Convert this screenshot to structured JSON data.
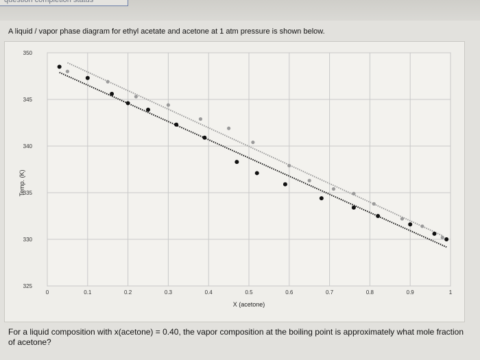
{
  "header": {
    "status_label": "question completion status"
  },
  "intro": "A liquid / vapor phase diagram for ethyl acetate and acetone at 1 atm pressure is shown below.",
  "question": "For a liquid composition with x(acetone) = 0.40, the vapor composition at the boiling point is approximately what mole fraction of acetone?",
  "colors": {
    "vapor_curve": "#9a9a9a",
    "liquid_curve": "#111111",
    "grid": "#c8c8c8"
  },
  "chart_data": {
    "type": "scatter",
    "title": "",
    "xlabel": "X (acetone)",
    "ylabel": "Temp. (K)",
    "xlim": [
      0,
      1
    ],
    "ylim": [
      325,
      350
    ],
    "x_ticks": [
      "0",
      "0.1",
      "0.2",
      "0.3",
      "0.4",
      "0.5",
      "0.6",
      "0.7",
      "0.8",
      "0.9",
      "1"
    ],
    "y_ticks": [
      "325",
      "330",
      "335",
      "340",
      "345",
      "350"
    ],
    "grid": true,
    "legend": "none",
    "series": [
      {
        "x": [
          0.05,
          0.15,
          0.22,
          0.3,
          0.38,
          0.45,
          0.51,
          0.6,
          0.65,
          0.71,
          0.76,
          0.81,
          0.88,
          0.93,
          0.98
        ],
        "y": [
          348,
          346.9,
          345.3,
          344.4,
          342.9,
          341.9,
          340.4,
          337.9,
          336.3,
          335.4,
          334.9,
          333.8,
          332.2,
          331.4,
          330.2
        ]
      },
      {
        "x": [
          0.03,
          0.1,
          0.16,
          0.2,
          0.25,
          0.32,
          0.39,
          0.47,
          0.52,
          0.59,
          0.68,
          0.76,
          0.82,
          0.9,
          0.96,
          0.99
        ],
        "y": [
          348.5,
          347.3,
          345.6,
          344.6,
          343.9,
          342.3,
          340.9,
          338.3,
          337.1,
          335.9,
          334.4,
          333.4,
          332.5,
          331.6,
          330.6,
          330.0
        ]
      }
    ]
  }
}
